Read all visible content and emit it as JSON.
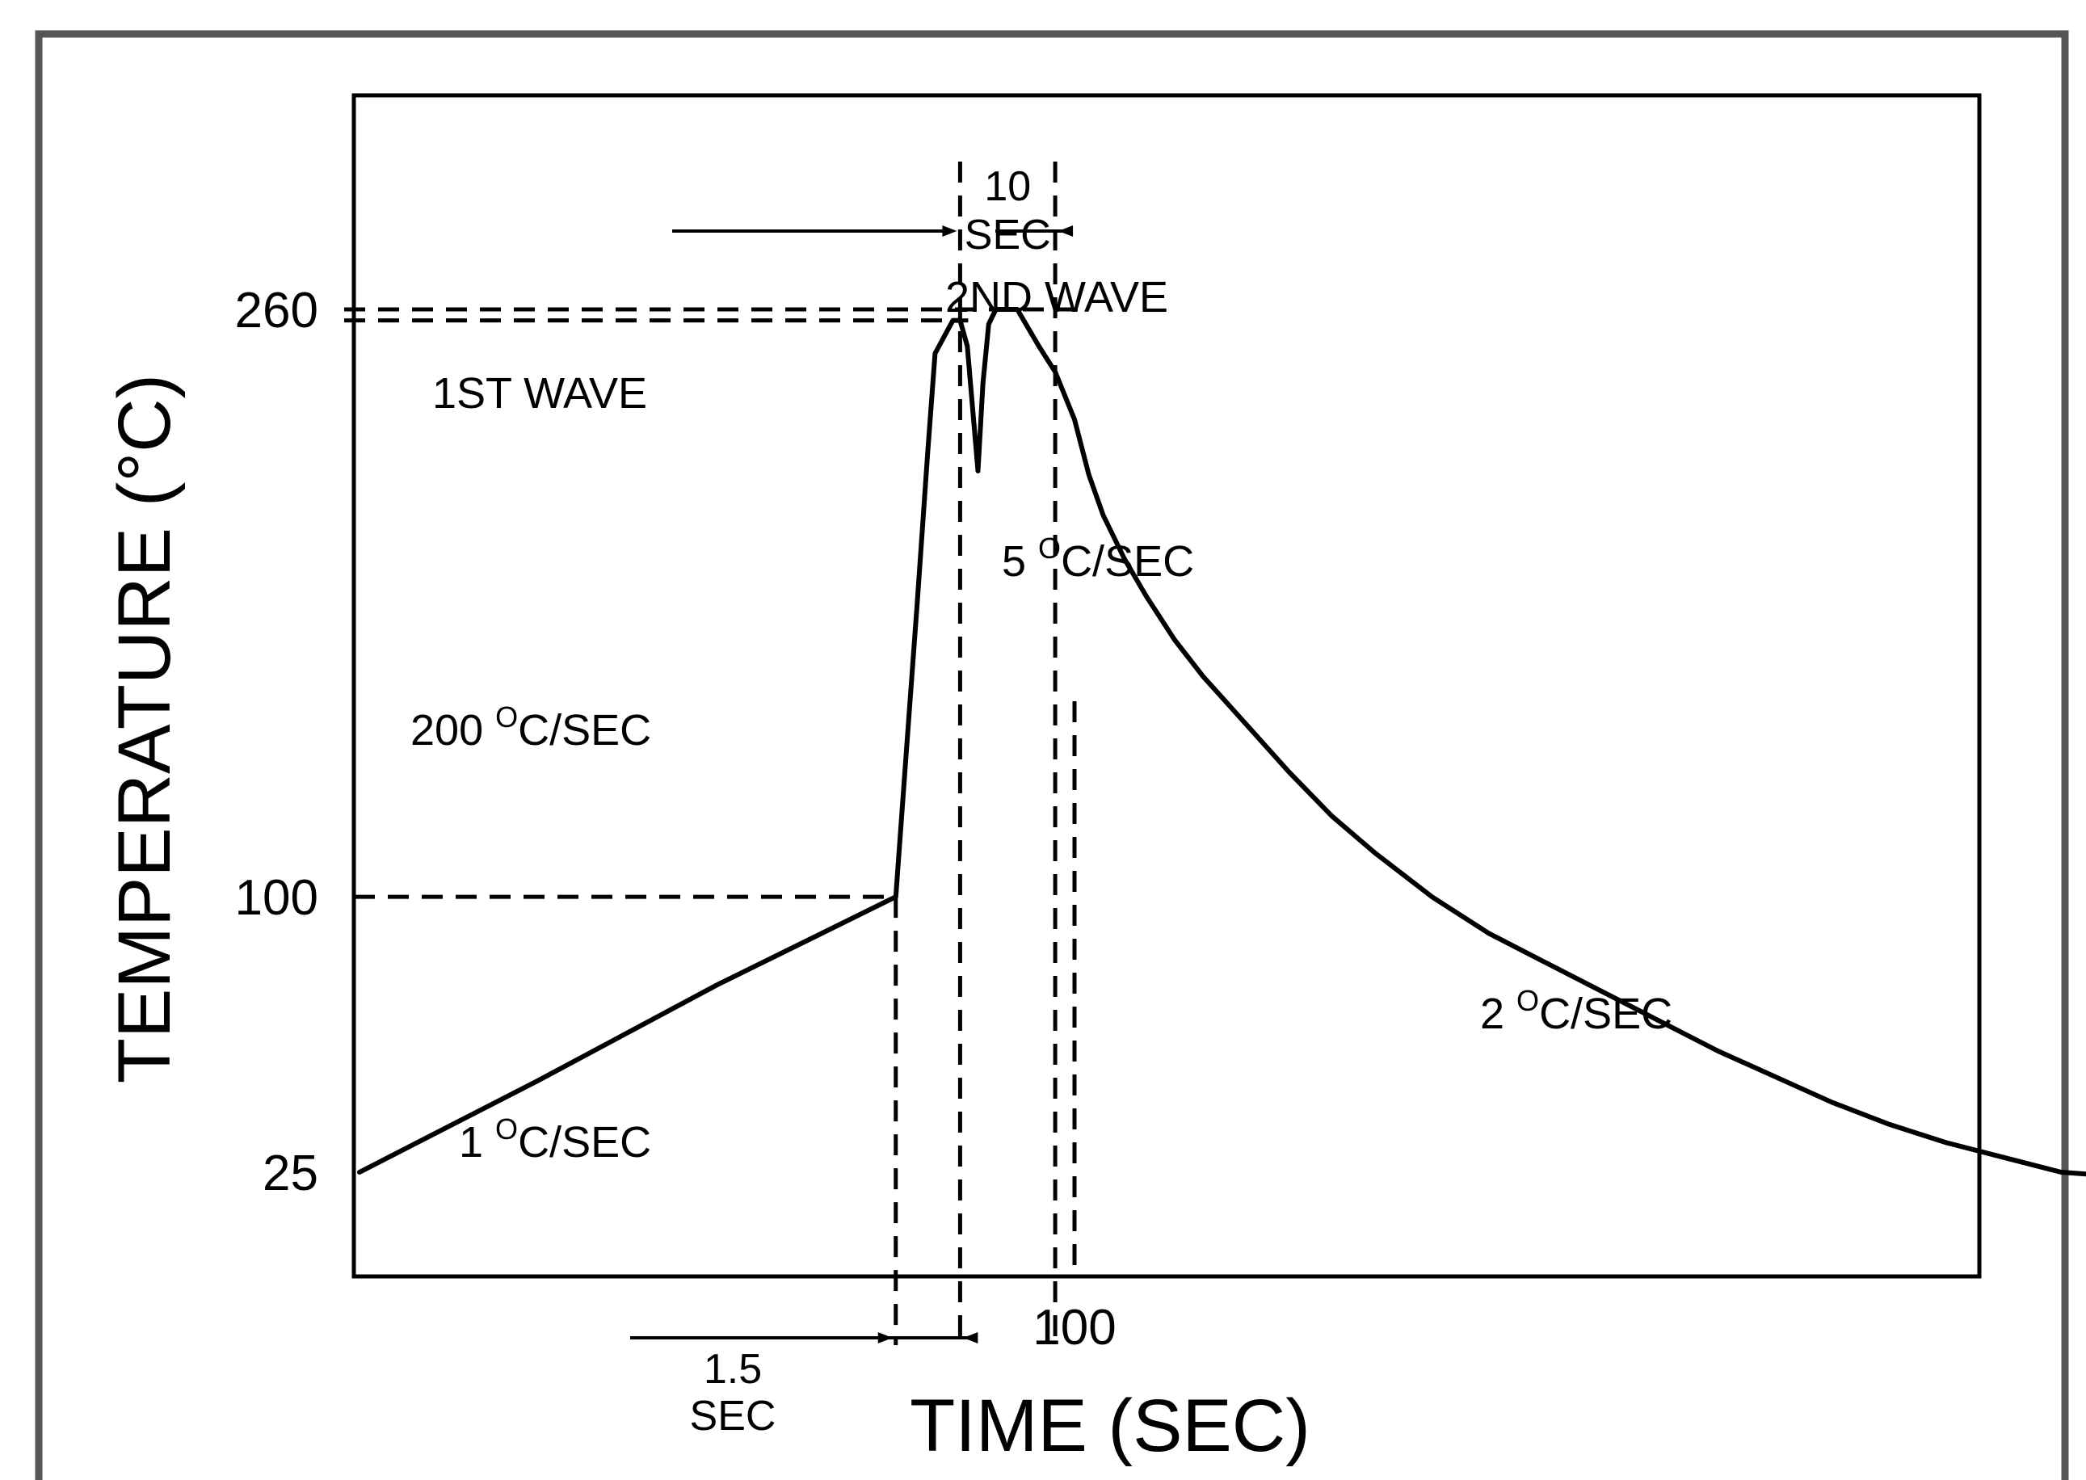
{
  "chart_data": {
    "type": "line",
    "title": "",
    "xlabel": "TIME (SEC)",
    "ylabel": "TEMPERATURE (°C)",
    "xlim": [
      0,
      242
    ],
    "ylim": [
      0,
      300
    ],
    "grid": false,
    "legend": "none",
    "x_ticks": [
      {
        "value": 100,
        "label": "100"
      }
    ],
    "y_ticks": [
      {
        "value": 25,
        "label": "25"
      },
      {
        "value": 100,
        "label": "100"
      },
      {
        "value": 260,
        "label": "260"
      }
    ],
    "series": [
      {
        "points": [
          [
            0,
            25
          ],
          [
            25,
            50
          ],
          [
            50,
            76
          ],
          [
            75,
            100
          ],
          [
            76.5,
            140
          ],
          [
            78,
            180
          ],
          [
            79.5,
            222
          ],
          [
            80.5,
            248
          ],
          [
            83,
            257
          ],
          [
            84,
            257
          ],
          [
            85,
            250
          ],
          [
            86.5,
            216
          ],
          [
            87.2,
            240
          ],
          [
            88,
            256
          ],
          [
            89,
            260
          ],
          [
            92,
            260
          ],
          [
            95,
            250
          ],
          [
            97.3,
            243
          ],
          [
            100,
            230
          ],
          [
            102,
            215
          ],
          [
            104,
            204
          ],
          [
            107,
            192
          ],
          [
            110,
            182
          ],
          [
            114,
            170
          ],
          [
            118,
            160
          ],
          [
            124,
            147
          ],
          [
            130,
            134
          ],
          [
            136,
            122
          ],
          [
            142,
            112
          ],
          [
            150,
            100
          ],
          [
            158,
            90
          ],
          [
            166,
            82
          ],
          [
            174,
            74
          ],
          [
            182,
            66
          ],
          [
            190,
            58
          ],
          [
            198,
            51
          ],
          [
            206,
            44
          ],
          [
            214,
            38
          ],
          [
            222,
            33
          ],
          [
            230,
            29
          ],
          [
            238,
            25
          ],
          [
            245,
            24
          ],
          [
            252,
            24
          ]
        ]
      }
    ],
    "annotations": [
      {
        "text": "1ST WAVE"
      },
      {
        "text": "2ND WAVE"
      },
      {
        "text": "1 ",
        "unit": "C/SEC",
        "sup": "O"
      },
      {
        "text": "200 ",
        "unit": "C/SEC",
        "sup": "O"
      },
      {
        "text": "5 ",
        "unit": "C/SEC",
        "sup": "O"
      },
      {
        "text": "2 ",
        "unit": "C/SEC",
        "sup": "O"
      }
    ],
    "dimension_labels": {
      "top": [
        "10",
        "SEC"
      ],
      "bottom": [
        "1.5",
        "SEC"
      ]
    },
    "reference_lines": {
      "vertical_x": [
        75,
        84,
        97.3,
        100
      ],
      "horizontal_y": [
        100,
        257,
        260
      ]
    }
  },
  "colors": {
    "line": "#000000",
    "frame": "#555555",
    "background": "#ffffff"
  }
}
